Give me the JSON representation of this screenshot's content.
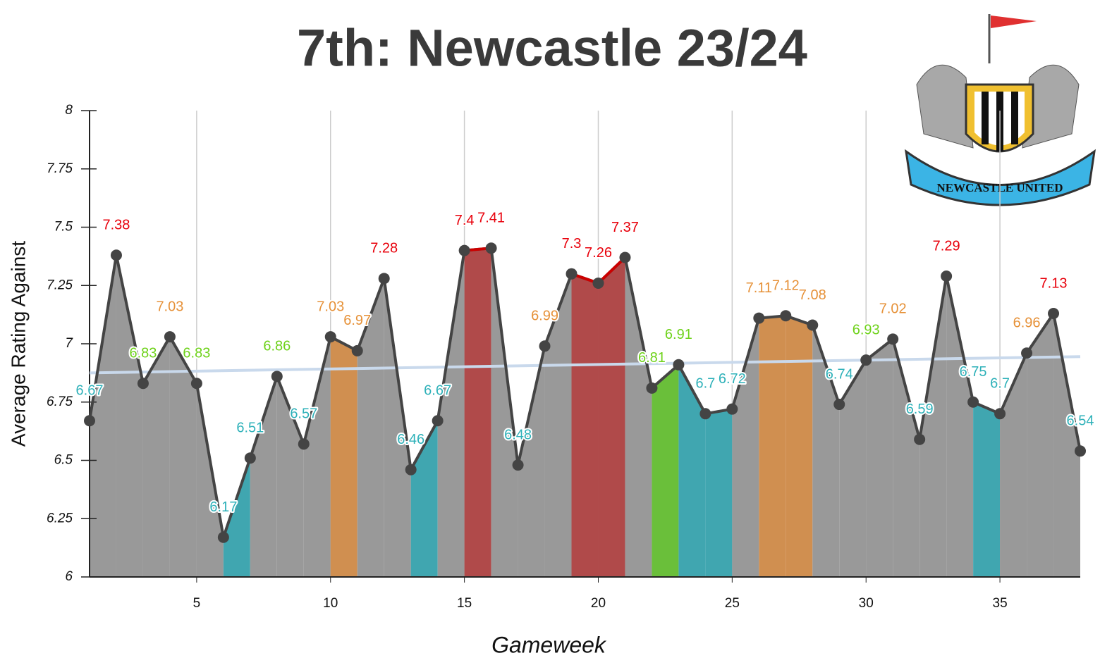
{
  "chart_data": {
    "type": "line",
    "title": "7th: Newcastle 23/24",
    "xlabel": "Gameweek",
    "ylabel": "Average Rating Against",
    "logo_text": "NEWCASTLE UNITED",
    "x": [
      1,
      2,
      3,
      4,
      5,
      6,
      7,
      8,
      9,
      10,
      11,
      12,
      13,
      14,
      15,
      16,
      17,
      18,
      19,
      20,
      21,
      22,
      23,
      24,
      25,
      26,
      27,
      28,
      29,
      30,
      31,
      32,
      33,
      34,
      35,
      36,
      37,
      38
    ],
    "series": [
      {
        "name": "Average Rating Against",
        "color": "#444444",
        "values": [
          6.67,
          7.38,
          6.83,
          7.03,
          6.83,
          6.17,
          6.51,
          6.86,
          6.57,
          7.03,
          6.97,
          7.28,
          6.46,
          6.67,
          7.4,
          7.41,
          6.48,
          6.99,
          7.3,
          7.26,
          7.37,
          6.81,
          6.91,
          6.7,
          6.72,
          7.11,
          7.12,
          7.08,
          6.74,
          6.93,
          7.02,
          6.59,
          7.29,
          6.75,
          6.7,
          6.96,
          7.13,
          6.54
        ],
        "label_colors": [
          "#2eb1b9",
          "#e8000b",
          "#6ed21a",
          "#e69138",
          "#6ed21a",
          "#2eb1b9",
          "#2eb1b9",
          "#6ed21a",
          "#2eb1b9",
          "#e69138",
          "#e69138",
          "#e8000b",
          "#2eb1b9",
          "#2eb1b9",
          "#e8000b",
          "#e8000b",
          "#2eb1b9",
          "#e69138",
          "#e8000b",
          "#e8000b",
          "#e8000b",
          "#6ed21a",
          "#6ed21a",
          "#2eb1b9",
          "#2eb1b9",
          "#e69138",
          "#e69138",
          "#e69138",
          "#2eb1b9",
          "#6ed21a",
          "#e69138",
          "#2eb1b9",
          "#e8000b",
          "#2eb1b9",
          "#2eb1b9",
          "#e69138",
          "#e8000b",
          "#2eb1b9"
        ],
        "area_colors": [
          "#999999",
          "#999999",
          "#999999",
          "#999999",
          "#999999",
          "#40a6b0",
          "#999999",
          "#999999",
          "#999999",
          "#d08f50",
          "#999999",
          "#999999",
          "#40a6b0",
          "#999999",
          "#b04a4a",
          "#999999",
          "#999999",
          "#999999",
          "#b04a4a",
          "#b04a4a",
          "#999999",
          "#6abf3a",
          "#40a6b0",
          "#40a6b0",
          "#999999",
          "#d08f50",
          "#d08f50",
          "#999999",
          "#999999",
          "#999999",
          "#999999",
          "#999999",
          "#999999",
          "#40a6b0",
          "#999999",
          "#999999",
          "#999999"
        ]
      }
    ],
    "trend": {
      "x": [
        1,
        38
      ],
      "values": [
        6.875,
        6.945
      ],
      "color": "#c9d9ec"
    },
    "xlim": [
      1,
      38
    ],
    "xticks": [
      5,
      10,
      15,
      20,
      25,
      30,
      35
    ],
    "ylim": [
      6,
      8
    ],
    "yticks": [
      6,
      6.25,
      6.5,
      6.75,
      7,
      7.25,
      7.5,
      7.75,
      8
    ],
    "grid": true
  }
}
